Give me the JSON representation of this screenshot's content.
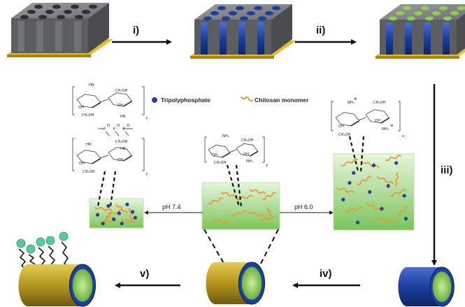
{
  "steps": {
    "i": "i)",
    "ii": "ii)",
    "iii": "iii)",
    "iv": "iv)",
    "v": "v)"
  },
  "legend": {
    "tripolyphosphate": "Tripolyphosphate",
    "chitosan_monomer": "Chitosan monomer"
  },
  "ph_labels": {
    "left": "pH 7.4",
    "right": "pH 6.0"
  },
  "chem_labels": {
    "ch2oh": "CH₂OH",
    "oh": "OH",
    "hn": "HN",
    "nh2": "NH₂",
    "nh3": "NH₃",
    "o": "O",
    "p": "P",
    "x": "x",
    "plus": "⊕",
    "minus": "⊖"
  },
  "colors": {
    "template_gray": "#7d7f84",
    "substrate_gold": "#e8b92a",
    "polymer_blue": "#1c3f9e",
    "chitosan_green": "#8fd14f",
    "gel_green": "#b7e4a0",
    "chitosan_orange": "#e59a3a",
    "tpp_blue": "#2b3d9a",
    "gold_shell": "#b5941e",
    "ligand_teal": "#5cc8a3"
  }
}
